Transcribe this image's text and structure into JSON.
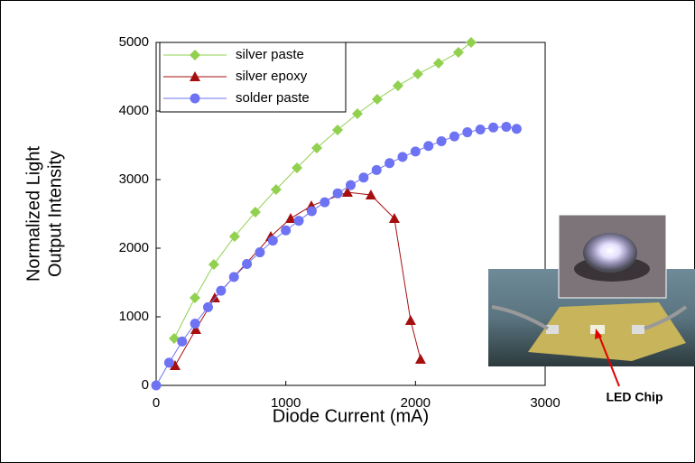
{
  "chart_data": {
    "type": "line",
    "xlabel": "Diode Current (mA)",
    "ylabel": [
      "Normalized Light",
      "Output Intensity"
    ],
    "xlim": [
      0,
      3000
    ],
    "xticks": [
      0,
      1000,
      2000,
      3000
    ],
    "ylim": [
      0,
      5000
    ],
    "yticks": [
      0,
      1000,
      2000,
      3000,
      4000,
      5000
    ],
    "legend": "upper left",
    "annotation": "LED Chip",
    "series": [
      {
        "name": "silver paste",
        "color": "#92d050",
        "marker": "diamond",
        "x": [
          139,
          299,
          445,
          605,
          765,
          925,
          1086,
          1239,
          1399,
          1552,
          1705,
          1865,
          2018,
          2178,
          2331,
          2429
        ],
        "values": [
          684,
          1276,
          1763,
          2171,
          2526,
          2855,
          3171,
          3461,
          3724,
          3961,
          4171,
          4368,
          4539,
          4697,
          4855,
          5000
        ]
      },
      {
        "name": "silver epoxy",
        "color": "#a50f0f",
        "marker": "triangle",
        "x": [
          146,
          306,
          452,
          884,
          1037,
          1197,
          1475,
          1656,
          1837,
          1962,
          2039
        ],
        "values": [
          289,
          816,
          1276,
          2171,
          2434,
          2618,
          2816,
          2776,
          2434,
          947,
          382
        ]
      },
      {
        "name": "solder paste",
        "color": "#6d73f2",
        "marker": "circle",
        "x": [
          0,
          100,
          200,
          300,
          400,
          500,
          600,
          700,
          800,
          900,
          1000,
          1100,
          1200,
          1300,
          1400,
          1500,
          1600,
          1700,
          1800,
          1900,
          2000,
          2100,
          2200,
          2300,
          2400,
          2500,
          2600,
          2700,
          2780
        ],
        "values": [
          0,
          330,
          640,
          900,
          1140,
          1380,
          1580,
          1770,
          1940,
          2110,
          2260,
          2400,
          2540,
          2670,
          2800,
          2920,
          3030,
          3140,
          3240,
          3330,
          3410,
          3490,
          3560,
          3630,
          3690,
          3730,
          3760,
          3770,
          3740
        ]
      }
    ]
  }
}
